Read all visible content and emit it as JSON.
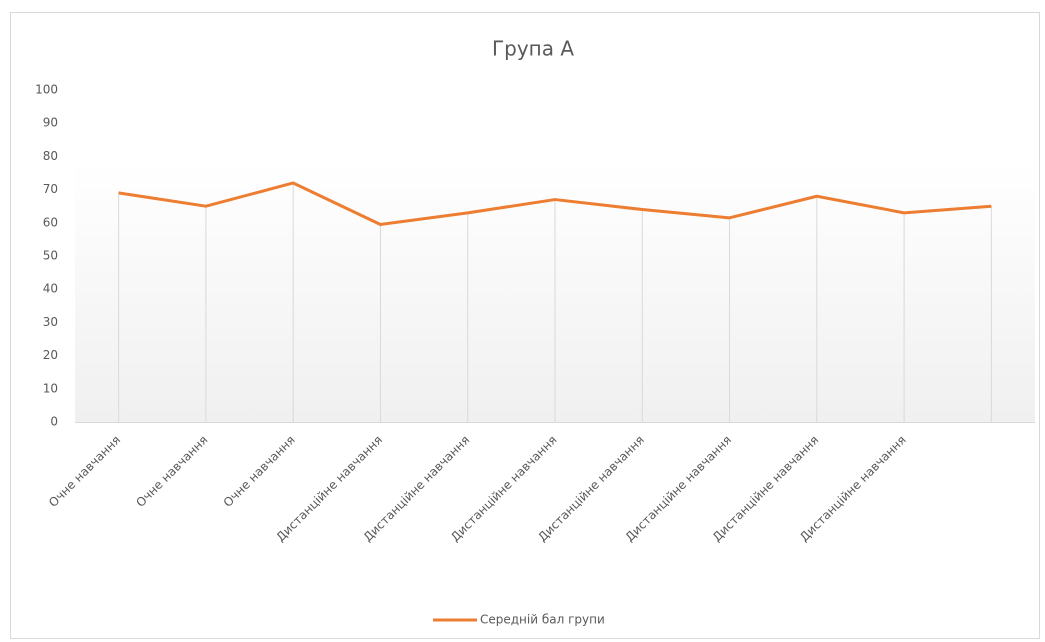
{
  "chart_data": {
    "type": "line",
    "title": "Група А",
    "categories": [
      "Очне навчання",
      "Очне навчання",
      "Очне навчання",
      "Дистанційне навчання",
      "Дистанційне навчання",
      "Дистанційне навчання",
      "Дистанційне навчання",
      "Дистанційне навчання",
      "Дистанційне навчання",
      "Дистанційне навчання",
      null
    ],
    "series": [
      {
        "name": "Середній бал групи",
        "color": "#ed7d31",
        "values": [
          69,
          65,
          72,
          59.5,
          63,
          67,
          64,
          61.5,
          68,
          63,
          65
        ]
      }
    ],
    "ylim": [
      0,
      100
    ],
    "yticks": [
      0,
      10,
      20,
      30,
      40,
      50,
      60,
      70,
      80,
      90,
      100
    ],
    "drop_lines": true,
    "legend": "bottom"
  }
}
